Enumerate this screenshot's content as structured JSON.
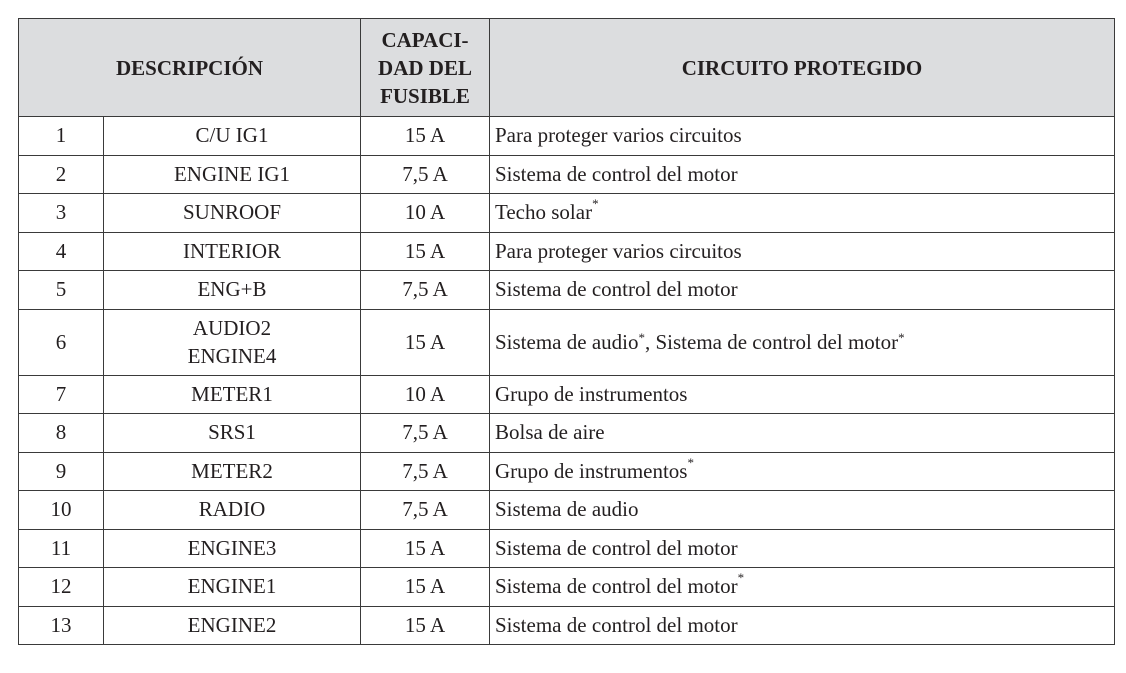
{
  "header": {
    "description": "DESCRIPCIÓN",
    "capacity": "CAPACI-\nDAD DEL\nFUSIBLE",
    "circuit": "CIRCUITO PROTEGIDO"
  },
  "rows": [
    {
      "num": "1",
      "name": "C/U IG1",
      "capacity": "15 A",
      "circuit": [
        {
          "text": "Para proteger varios circuitos"
        }
      ]
    },
    {
      "num": "2",
      "name": "ENGINE IG1",
      "capacity": "7,5 A",
      "circuit": [
        {
          "text": "Sistema de control del motor"
        }
      ]
    },
    {
      "num": "3",
      "name": "SUNROOF",
      "capacity": "10 A",
      "circuit": [
        {
          "text": "Techo solar"
        },
        {
          "sup": "*"
        }
      ]
    },
    {
      "num": "4",
      "name": "INTERIOR",
      "capacity": "15 A",
      "circuit": [
        {
          "text": "Para proteger varios circuitos"
        }
      ]
    },
    {
      "num": "5",
      "name": "ENG+B",
      "capacity": "7,5 A",
      "circuit": [
        {
          "text": "Sistema de control del motor"
        }
      ]
    },
    {
      "num": "6",
      "name": "AUDIO2\nENGINE4",
      "capacity": "15 A",
      "circuit": [
        {
          "text": "Sistema de audio"
        },
        {
          "sup": "*"
        },
        {
          "text": ", Sistema de control del motor"
        },
        {
          "sup": "*"
        }
      ]
    },
    {
      "num": "7",
      "name": "METER1",
      "capacity": "10 A",
      "circuit": [
        {
          "text": "Grupo de instrumentos"
        }
      ]
    },
    {
      "num": "8",
      "name": "SRS1",
      "capacity": "7,5 A",
      "circuit": [
        {
          "text": "Bolsa de aire"
        }
      ]
    },
    {
      "num": "9",
      "name": "METER2",
      "capacity": "7,5 A",
      "circuit": [
        {
          "text": "Grupo de instrumentos"
        },
        {
          "sup": "*"
        }
      ]
    },
    {
      "num": "10",
      "name": "RADIO",
      "capacity": "7,5 A",
      "circuit": [
        {
          "text": "Sistema de audio"
        }
      ]
    },
    {
      "num": "11",
      "name": "ENGINE3",
      "capacity": "15 A",
      "circuit": [
        {
          "text": "Sistema de control del motor"
        }
      ]
    },
    {
      "num": "12",
      "name": "ENGINE1",
      "capacity": "15 A",
      "circuit": [
        {
          "text": "Sistema de control del motor"
        },
        {
          "sup": "*"
        }
      ]
    },
    {
      "num": "13",
      "name": "ENGINE2",
      "capacity": "15 A",
      "circuit": [
        {
          "text": "Sistema de control del motor"
        }
      ]
    }
  ]
}
